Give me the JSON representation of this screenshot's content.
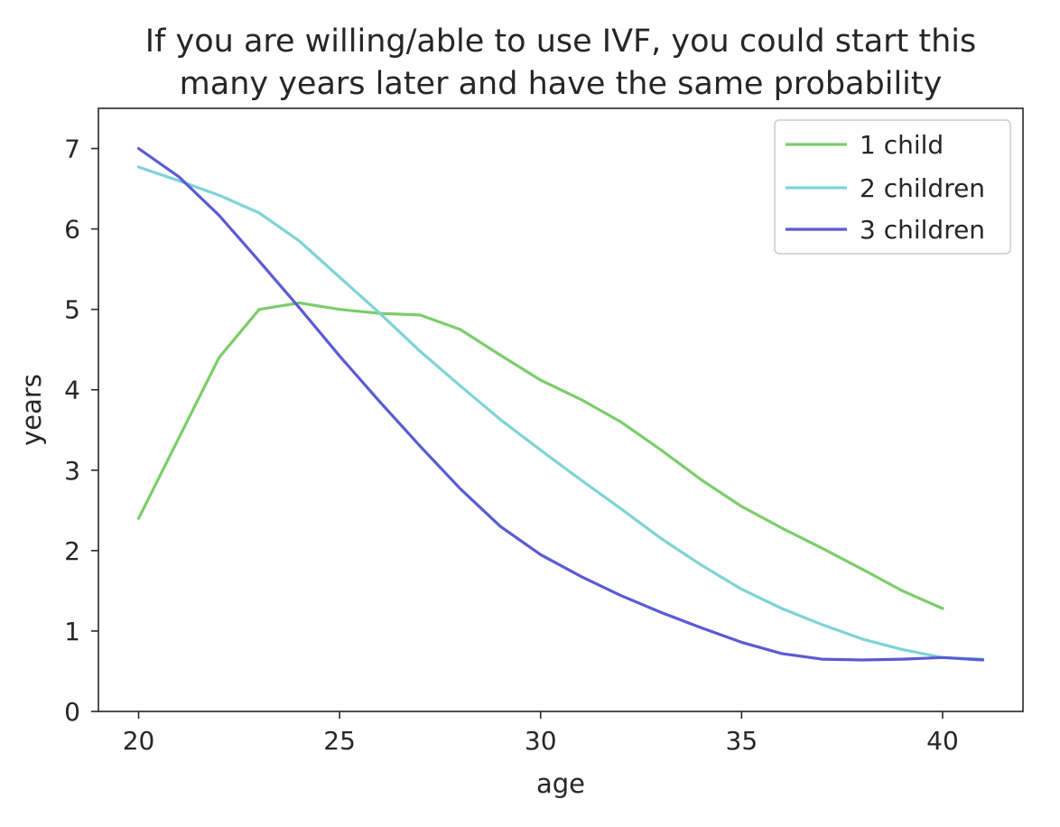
{
  "chart_data": {
    "type": "line",
    "title": "If you are willing/able to use IVF, you could start this\nmany years later and have the same probability",
    "title_lines": [
      "If you are willing/able to use IVF, you could start this",
      "many years later and have the same probability"
    ],
    "xlabel": "age",
    "ylabel": "years",
    "xlim": [
      19,
      42
    ],
    "ylim": [
      0,
      7.5
    ],
    "x_ticks": [
      20,
      25,
      30,
      35,
      40
    ],
    "y_ticks": [
      0,
      1,
      2,
      3,
      4,
      5,
      6,
      7
    ],
    "grid": false,
    "legend_position": "top-right",
    "series": [
      {
        "name": "1 child",
        "color": "#7ccd6c",
        "x": [
          20,
          21,
          22,
          23,
          24,
          25,
          26,
          27,
          28,
          29,
          30,
          31,
          32,
          33,
          34,
          35,
          36,
          37,
          38,
          39,
          40
        ],
        "values": [
          2.4,
          3.4,
          4.4,
          5.0,
          5.08,
          5.0,
          4.95,
          4.93,
          4.75,
          4.43,
          4.12,
          3.88,
          3.6,
          3.25,
          2.88,
          2.55,
          2.28,
          2.03,
          1.77,
          1.5,
          1.28
        ]
      },
      {
        "name": "2 children",
        "color": "#7ed3d6",
        "x": [
          20,
          21,
          22,
          23,
          24,
          25,
          26,
          27,
          28,
          29,
          30,
          31,
          32,
          33,
          34,
          35,
          36,
          37,
          38,
          39,
          40,
          41
        ],
        "values": [
          6.77,
          6.6,
          6.42,
          6.2,
          5.85,
          5.4,
          4.95,
          4.48,
          4.05,
          3.63,
          3.25,
          2.88,
          2.52,
          2.15,
          1.82,
          1.52,
          1.28,
          1.08,
          0.9,
          0.77,
          0.67,
          0.65
        ]
      },
      {
        "name": "3 children",
        "color": "#5b5bd3",
        "x": [
          20,
          21,
          22,
          23,
          24,
          25,
          26,
          27,
          28,
          29,
          30,
          31,
          32,
          33,
          34,
          35,
          36,
          37,
          38,
          39,
          40,
          41
        ],
        "values": [
          7.0,
          6.65,
          6.17,
          5.6,
          5.02,
          4.42,
          3.85,
          3.3,
          2.77,
          2.3,
          1.95,
          1.68,
          1.44,
          1.23,
          1.04,
          0.86,
          0.72,
          0.65,
          0.64,
          0.65,
          0.67,
          0.64
        ]
      }
    ]
  }
}
